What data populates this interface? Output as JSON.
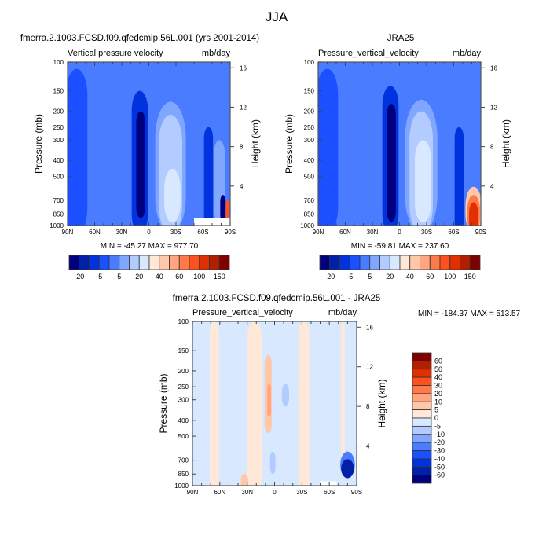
{
  "main_title": "JJA",
  "chart_data": [
    {
      "type": "heatmap",
      "title": "fmerra.2.1003.FCSD.f09.qfedcmip.56L.001 (yrs 2001-2014)",
      "left_label": "Vertical pressure velocity",
      "right_label": "mb/day",
      "ylabel": "Pressure (mb)",
      "ylabel_right": "Height (km)",
      "x_ticks": [
        "90N",
        "60N",
        "30N",
        "0",
        "30S",
        "60S",
        "90S"
      ],
      "x_values": [
        90,
        60,
        30,
        0,
        -30,
        -60,
        -90
      ],
      "y_ticks": [
        100,
        150,
        200,
        250,
        300,
        400,
        500,
        700,
        850,
        1000
      ],
      "y_right_ticks": [
        4,
        8,
        12,
        16
      ],
      "ylim": [
        1000,
        100
      ],
      "stats": "MIN = -45.27  MAX = 977.70",
      "colorbar_labels": [
        "-20",
        "-5",
        "5",
        "20",
        "40",
        "60",
        "100",
        "150"
      ],
      "background_level": 4,
      "features": [
        {
          "lat": 80,
          "hw": 12,
          "p": [
            110,
            1000
          ],
          "lvl": 3
        },
        {
          "lat": 10,
          "hw": 9,
          "p": [
            150,
            1000
          ],
          "lvl": 2
        },
        {
          "lat": 9,
          "hw": 5,
          "p": [
            200,
            900
          ],
          "lvl": 0
        },
        {
          "lat": -24,
          "hw": 17,
          "p": [
            175,
            1000
          ],
          "lvl": 5
        },
        {
          "lat": -24,
          "hw": 13,
          "p": [
            210,
            1000
          ],
          "lvl": 6
        },
        {
          "lat": -26,
          "hw": 9,
          "p": [
            450,
            960
          ],
          "lvl": 7
        },
        {
          "lat": -66,
          "hw": 5,
          "p": [
            250,
            1000
          ],
          "lvl": 2
        },
        {
          "lat": -78,
          "hw": 6,
          "p": [
            300,
            950
          ],
          "lvl": 5
        },
        {
          "lat": -82,
          "hw": 3,
          "p": [
            650,
            950
          ],
          "lvl": 0
        },
        {
          "lat": -87,
          "hw": 2,
          "p": [
            700,
            960
          ],
          "lvl": 12
        }
      ],
      "missing": {
        "lat": [
          -50,
          -90
        ],
        "p": [
          900,
          1000
        ]
      }
    },
    {
      "type": "heatmap",
      "title": "JRA25",
      "left_label": "Pressure_vertical_velocity",
      "right_label": "mb/day",
      "ylabel": "Pressure (mb)",
      "ylabel_right": "Height (km)",
      "x_ticks": [
        "90N",
        "60N",
        "30N",
        "0",
        "30S",
        "60S",
        "90S"
      ],
      "x_values": [
        90,
        60,
        30,
        0,
        -30,
        -60,
        -90
      ],
      "y_ticks": [
        100,
        150,
        200,
        250,
        300,
        400,
        500,
        700,
        850,
        1000
      ],
      "y_right_ticks": [
        4,
        8,
        12,
        16
      ],
      "ylim": [
        1000,
        100
      ],
      "stats": "MIN = -59.81  MAX = 237.60",
      "colorbar_labels": [
        "-20",
        "-5",
        "5",
        "20",
        "40",
        "60",
        "100",
        "150"
      ],
      "background_level": 4,
      "features": [
        {
          "lat": 80,
          "hw": 12,
          "p": [
            110,
            1000
          ],
          "lvl": 3
        },
        {
          "lat": 10,
          "hw": 9,
          "p": [
            140,
            1000
          ],
          "lvl": 2
        },
        {
          "lat": 9,
          "hw": 5,
          "p": [
            180,
            950
          ],
          "lvl": 0
        },
        {
          "lat": -24,
          "hw": 18,
          "p": [
            170,
            1000
          ],
          "lvl": 5
        },
        {
          "lat": -24,
          "hw": 13,
          "p": [
            200,
            1000
          ],
          "lvl": 6
        },
        {
          "lat": -26,
          "hw": 9,
          "p": [
            300,
            960
          ],
          "lvl": 7
        },
        {
          "lat": -66,
          "hw": 5,
          "p": [
            250,
            1000
          ],
          "lvl": 2
        },
        {
          "lat": -82,
          "hw": 9,
          "p": [
            580,
            1000
          ],
          "lvl": 9
        },
        {
          "lat": -82,
          "hw": 7,
          "p": [
            650,
            1000
          ],
          "lvl": 11
        },
        {
          "lat": -82,
          "hw": 5,
          "p": [
            720,
            1000
          ],
          "lvl": 13
        }
      ],
      "missing": null
    },
    {
      "type": "heatmap",
      "title": "fmerra.2.1003.FCSD.f09.qfedcmip.56L.001 - JRA25",
      "left_label": "Pressure_vertical_velocity",
      "right_label": "mb/day",
      "ylabel": "Pressure (mb)",
      "ylabel_right": "Height (km)",
      "x_ticks": [
        "90N",
        "60N",
        "30N",
        "0",
        "30S",
        "60S",
        "90S"
      ],
      "x_values": [
        90,
        60,
        30,
        0,
        -30,
        -60,
        -90
      ],
      "y_ticks": [
        100,
        150,
        200,
        250,
        300,
        400,
        500,
        700,
        850,
        1000
      ],
      "y_right_ticks": [
        4,
        8,
        12,
        16
      ],
      "ylim": [
        1000,
        100
      ],
      "stats": "MIN = -184.37  MAX = 513.57",
      "colorbar_labels": [
        "60",
        "50",
        "40",
        "30",
        "20",
        "10",
        "5",
        "0",
        "-5",
        "-10",
        "-20",
        "-30",
        "-40",
        "-50",
        "-60"
      ],
      "background_level": 7,
      "features": [
        {
          "lat": 66,
          "hw": 5,
          "p": [
            100,
            1000
          ],
          "lvl": 8
        },
        {
          "lat": 22,
          "hw": 8,
          "p": [
            100,
            1000
          ],
          "lvl": 8
        },
        {
          "lat": -32,
          "hw": 6,
          "p": [
            100,
            1000
          ],
          "lvl": 8
        },
        {
          "lat": -75,
          "hw": 2,
          "p": [
            100,
            700
          ],
          "lvl": 8
        },
        {
          "lat": 7,
          "hw": 4,
          "p": [
            160,
            480
          ],
          "lvl": 9
        },
        {
          "lat": 6,
          "hw": 2,
          "p": [
            240,
            380
          ],
          "lvl": 10
        },
        {
          "lat": -12,
          "hw": 4,
          "p": [
            240,
            330
          ],
          "lvl": 6
        },
        {
          "lat": 2,
          "hw": 3,
          "p": [
            620,
            850
          ],
          "lvl": 6
        },
        {
          "lat": 33,
          "hw": 4,
          "p": [
            850,
            1000
          ],
          "lvl": 9
        },
        {
          "lat": -80,
          "hw": 8,
          "p": [
            620,
            900
          ],
          "lvl": 4
        },
        {
          "lat": -80,
          "hw": 7,
          "p": [
            690,
            900
          ],
          "lvl": 1
        }
      ],
      "missing": {
        "lat": [
          -50,
          -68
        ],
        "p": [
          940,
          1000
        ]
      }
    }
  ],
  "colors": {
    "levels16": [
      "#00007f",
      "#0020a8",
      "#0033dd",
      "#1a50ff",
      "#4a7cff",
      "#80a6ff",
      "#b3ccff",
      "#d8e8ff",
      "#ffe8d8",
      "#ffc8aa",
      "#ffa57f",
      "#ff7a48",
      "#ff5020",
      "#e03000",
      "#b02000",
      "#800000"
    ],
    "axis": "#444444"
  }
}
